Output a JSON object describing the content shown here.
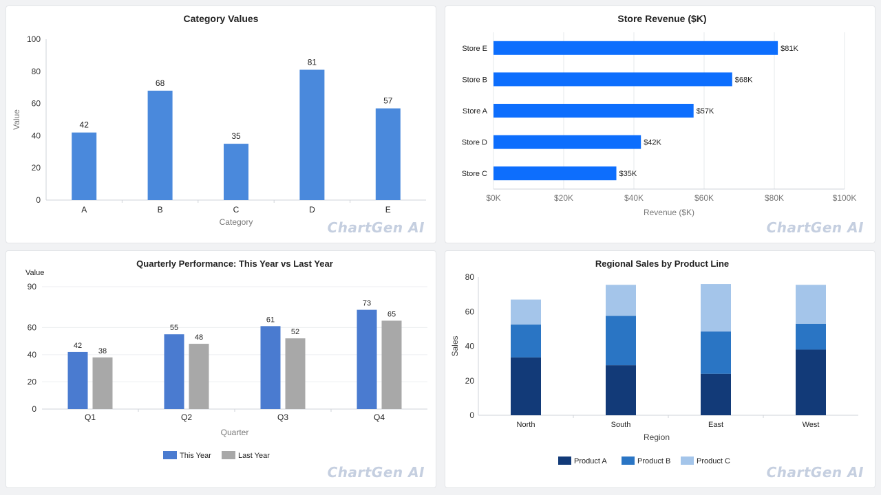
{
  "watermark": "ChartGen AI",
  "chart_data": [
    {
      "type": "bar",
      "title": "Category Values",
      "xlabel": "Category",
      "ylabel": "Value",
      "categories": [
        "A",
        "B",
        "C",
        "D",
        "E"
      ],
      "values": [
        42,
        68,
        35,
        81,
        57
      ],
      "ylim": [
        0,
        100
      ],
      "yticks": [
        "0",
        "20",
        "40",
        "60",
        "80",
        "100"
      ],
      "color": "#4a89dc",
      "grid": false
    },
    {
      "type": "bar",
      "orientation": "horizontal",
      "title": "Store Revenue ($K)",
      "xlabel": "Revenue ($K)",
      "ylabel": "",
      "categories": [
        "Store E",
        "Store B",
        "Store A",
        "Store D",
        "Store C"
      ],
      "values": [
        81,
        68,
        57,
        42,
        35
      ],
      "value_labels": [
        "$81K",
        "$68K",
        "$57K",
        "$42K",
        "$35K"
      ],
      "xlim": [
        0,
        100
      ],
      "xticks": [
        "$0K",
        "$20K",
        "$40K",
        "$60K",
        "$80K",
        "$100K"
      ],
      "color": "#0d6efd",
      "grid": true
    },
    {
      "type": "bar",
      "title": "Quarterly Performance: This Year vs Last Year",
      "xlabel": "Quarter",
      "ylabel": "Value",
      "categories": [
        "Q1",
        "Q2",
        "Q3",
        "Q4"
      ],
      "series": [
        {
          "name": "This Year",
          "values": [
            42,
            55,
            61,
            73
          ],
          "color": "#4a7bd0"
        },
        {
          "name": "Last Year",
          "values": [
            38,
            48,
            52,
            65
          ],
          "color": "#a8a8a8"
        }
      ],
      "ylim": [
        0,
        90
      ],
      "yticks": [
        "0",
        "20",
        "40",
        "60",
        "90"
      ],
      "legend": "bottom",
      "grid": true
    },
    {
      "type": "bar",
      "stacked": true,
      "title": "Regional Sales by Product Line",
      "xlabel": "Region",
      "ylabel": "Sales",
      "categories": [
        "North",
        "South",
        "East",
        "West"
      ],
      "series": [
        {
          "name": "Product A",
          "values": [
            33.5,
            29,
            24,
            38
          ],
          "color": "#123a78"
        },
        {
          "name": "Product B",
          "values": [
            19,
            28.5,
            24.5,
            15
          ],
          "color": "#2a75c4"
        },
        {
          "name": "Product C",
          "values": [
            14.5,
            18,
            27.5,
            22.5
          ],
          "color": "#a4c5ea"
        }
      ],
      "ylim": [
        0,
        80
      ],
      "yticks": [
        "0",
        "20",
        "40",
        "60",
        "80"
      ],
      "legend": "bottom",
      "grid": false
    }
  ]
}
